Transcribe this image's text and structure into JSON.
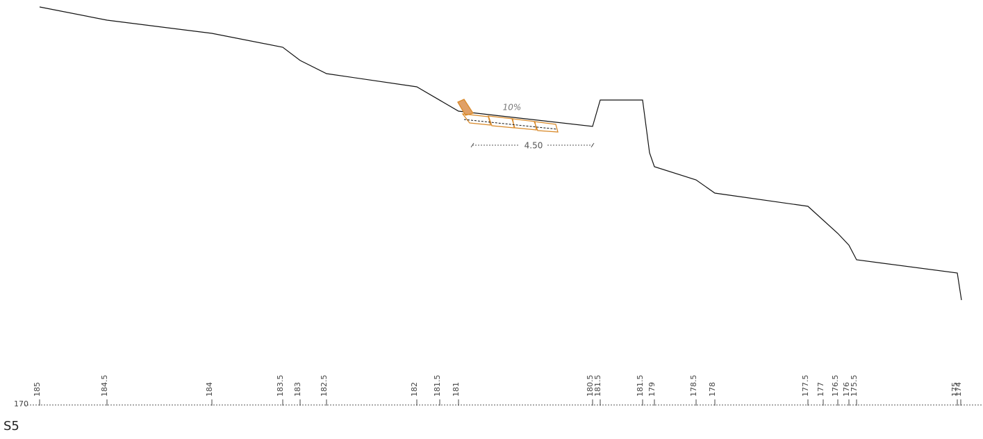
{
  "section": {
    "name": "S5",
    "datum": "170",
    "slope": "10%",
    "dimension": "4.50",
    "levels": [
      "185",
      "184.5",
      "184",
      "183.5",
      "183",
      "182.5",
      "182",
      "181.5",
      "181",
      "180.5",
      "181.5",
      "181.5",
      "179",
      "178.5",
      "178",
      "177.5",
      "177",
      "176.5",
      "176",
      "175.5",
      "175",
      "174"
    ]
  }
}
